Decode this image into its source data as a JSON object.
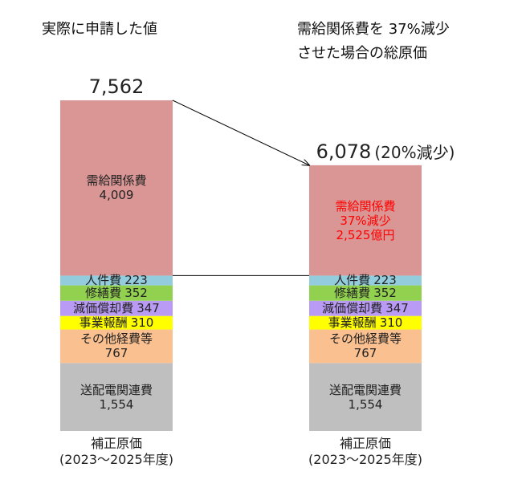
{
  "chart_data": {
    "type": "stacked_bar",
    "titles": [
      "実際に申請した値",
      "需給関係費を 37%減少\nさせた場合の総原価"
    ],
    "categories": [
      "補正原価\n(2023～2025年度)",
      "補正原価\n(2023～2025年度)"
    ],
    "totals": [
      7562,
      6078
    ],
    "total_labels": [
      "7,562",
      "6,078"
    ],
    "total_notes": [
      null,
      "(20%減少)"
    ],
    "series": [
      {
        "name": "送配電関連費",
        "color": "#bfbfbf",
        "values": [
          1554,
          1554
        ],
        "value_labels": [
          "1,554",
          "1,554"
        ]
      },
      {
        "name": "その他経費等",
        "color": "#fac090",
        "values": [
          767,
          767
        ]
      },
      {
        "name": "事業報酬",
        "color": "#ffff00",
        "values": [
          310,
          310
        ]
      },
      {
        "name": "減価償却費",
        "color": "#b99af5",
        "values": [
          347,
          347
        ]
      },
      {
        "name": "修繕費",
        "color": "#92d050",
        "values": [
          352,
          352
        ]
      },
      {
        "name": "人件費",
        "color": "#93cddd",
        "values": [
          223,
          223
        ]
      },
      {
        "name": "需給関係費",
        "color": "#d99694",
        "values": [
          4009,
          2525
        ],
        "value_labels": [
          "4,009",
          "2,525億円"
        ],
        "notes": [
          null,
          "37%減少"
        ],
        "label_colors": [
          "#222222",
          "#ff0000"
        ]
      }
    ]
  }
}
